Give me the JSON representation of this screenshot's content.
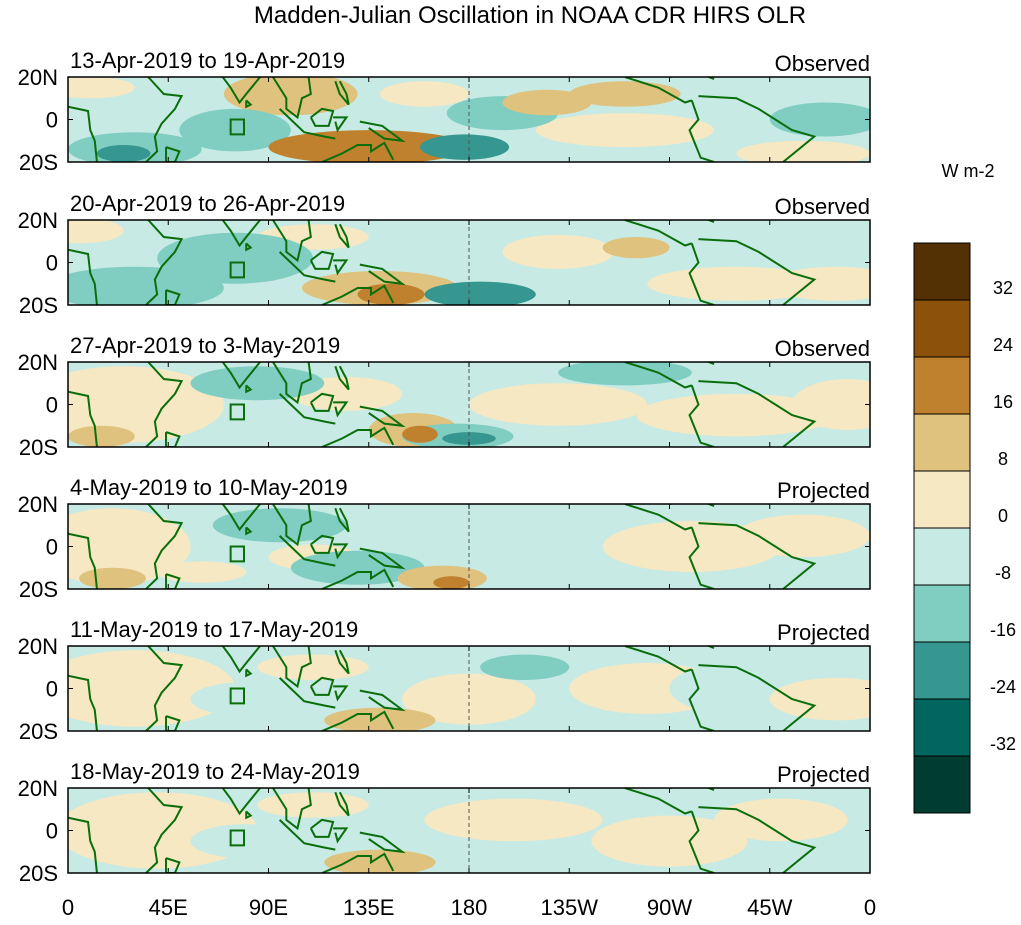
{
  "chart_data": {
    "type": "heatmap",
    "title": "Madden-Julian Oscillation in NOAA CDR HIRS OLR",
    "units_label": "W m-2",
    "x_ticks": [
      {
        "lon": 0,
        "label": "0"
      },
      {
        "lon": 45,
        "label": "45E"
      },
      {
        "lon": 90,
        "label": "90E"
      },
      {
        "lon": 135,
        "label": "135E"
      },
      {
        "lon": 180,
        "label": "180"
      },
      {
        "lon": 225,
        "label": "135W"
      },
      {
        "lon": 270,
        "label": "90W"
      },
      {
        "lon": 315,
        "label": "45W"
      },
      {
        "lon": 360,
        "label": "0"
      }
    ],
    "y_ticks": [
      {
        "lat": 20,
        "label": "20N"
      },
      {
        "lat": 0,
        "label": "0"
      },
      {
        "lat": -20,
        "label": "20S"
      }
    ],
    "xlim": [
      0,
      360
    ],
    "ylim": [
      -20,
      20
    ],
    "dateline_lon": 180,
    "colorbar": {
      "levels": [
        32,
        24,
        16,
        8,
        0,
        -8,
        -16,
        -24,
        -32
      ],
      "labels": [
        "32",
        "24",
        "16",
        "8",
        "0",
        "-8",
        "-16",
        "-24",
        "-32"
      ],
      "colors": [
        "#543005",
        "#8c510a",
        "#bf812d",
        "#dfc27d",
        "#f6e8c3",
        "#c7eae5",
        "#80cdc1",
        "#35978f",
        "#01665e",
        "#003c30"
      ]
    },
    "panels": [
      {
        "period": "13-Apr-2019 to 19-Apr-2019",
        "status": "Observed",
        "features": [
          [
            100,
            12,
            30,
            10,
            12
          ],
          [
            135,
            -13,
            45,
            8,
            18
          ],
          [
            130,
            -14,
            20,
            5,
            22
          ],
          [
            30,
            -14,
            30,
            8,
            -16
          ],
          [
            25,
            -16,
            12,
            4,
            -22
          ],
          [
            75,
            -5,
            25,
            10,
            -12
          ],
          [
            178,
            -13,
            20,
            6,
            -18
          ],
          [
            195,
            3,
            25,
            8,
            -10
          ],
          [
            160,
            12,
            20,
            6,
            4
          ],
          [
            215,
            8,
            20,
            6,
            10
          ],
          [
            250,
            12,
            25,
            6,
            10
          ],
          [
            250,
            -5,
            40,
            8,
            4
          ],
          [
            340,
            0,
            25,
            8,
            -10
          ],
          [
            330,
            -16,
            30,
            6,
            6
          ],
          [
            10,
            15,
            20,
            5,
            4
          ]
        ]
      },
      {
        "period": "20-Apr-2019 to 26-Apr-2019",
        "status": "Observed",
        "features": [
          [
            30,
            -12,
            40,
            10,
            -12
          ],
          [
            75,
            2,
            35,
            12,
            -12
          ],
          [
            140,
            -12,
            35,
            8,
            12
          ],
          [
            145,
            -15,
            15,
            5,
            18
          ],
          [
            185,
            -15,
            25,
            6,
            -18
          ],
          [
            190,
            -16,
            10,
            3,
            -24
          ],
          [
            110,
            12,
            25,
            6,
            6
          ],
          [
            220,
            5,
            25,
            8,
            6
          ],
          [
            255,
            7,
            15,
            5,
            12
          ],
          [
            300,
            -10,
            40,
            8,
            4
          ],
          [
            345,
            -10,
            30,
            8,
            4
          ],
          [
            5,
            15,
            20,
            6,
            4
          ]
        ]
      },
      {
        "period": "27-Apr-2019 to 3-May-2019",
        "status": "Observed",
        "features": [
          [
            25,
            0,
            45,
            18,
            4
          ],
          [
            15,
            -15,
            15,
            5,
            10
          ],
          [
            85,
            10,
            30,
            8,
            -10
          ],
          [
            175,
            -15,
            25,
            6,
            -14
          ],
          [
            180,
            -16,
            12,
            3,
            -20
          ],
          [
            155,
            -12,
            20,
            8,
            12
          ],
          [
            158,
            -14,
            8,
            4,
            18
          ],
          [
            220,
            0,
            40,
            10,
            6
          ],
          [
            250,
            15,
            30,
            6,
            -10
          ],
          [
            300,
            -5,
            45,
            10,
            4
          ],
          [
            350,
            0,
            25,
            12,
            4
          ],
          [
            125,
            5,
            25,
            8,
            4
          ]
        ]
      },
      {
        "period": "4-May-2019 to 10-May-2019",
        "status": "Projected",
        "features": [
          [
            20,
            0,
            35,
            18,
            4
          ],
          [
            20,
            -15,
            15,
            5,
            10
          ],
          [
            95,
            10,
            30,
            8,
            -10
          ],
          [
            130,
            -10,
            30,
            8,
            -10
          ],
          [
            168,
            -15,
            20,
            6,
            12
          ],
          [
            172,
            -17,
            8,
            3,
            18
          ],
          [
            110,
            -5,
            20,
            6,
            4
          ],
          [
            205,
            0,
            30,
            12,
            -6
          ],
          [
            280,
            0,
            40,
            12,
            4
          ],
          [
            330,
            5,
            30,
            10,
            4
          ],
          [
            60,
            -12,
            20,
            5,
            4
          ]
        ]
      },
      {
        "period": "11-May-2019 to 17-May-2019",
        "status": "Projected",
        "features": [
          [
            30,
            0,
            45,
            18,
            4
          ],
          [
            140,
            -15,
            25,
            6,
            8
          ],
          [
            150,
            -17,
            10,
            3,
            12
          ],
          [
            205,
            10,
            20,
            6,
            -10
          ],
          [
            260,
            0,
            35,
            12,
            4
          ],
          [
            300,
            0,
            30,
            12,
            -4
          ],
          [
            80,
            -5,
            25,
            8,
            -6
          ],
          [
            110,
            10,
            25,
            6,
            4
          ],
          [
            345,
            -5,
            30,
            10,
            4
          ],
          [
            180,
            -5,
            30,
            12,
            4
          ]
        ]
      },
      {
        "period": "18-May-2019 to 24-May-2019",
        "status": "Projected",
        "features": [
          [
            40,
            0,
            45,
            18,
            4
          ],
          [
            140,
            -15,
            25,
            6,
            8
          ],
          [
            145,
            -17,
            10,
            3,
            12
          ],
          [
            80,
            -5,
            25,
            8,
            -6
          ],
          [
            200,
            5,
            40,
            10,
            4
          ],
          [
            270,
            -5,
            35,
            12,
            4
          ],
          [
            320,
            5,
            30,
            10,
            4
          ],
          [
            110,
            12,
            25,
            6,
            4
          ]
        ]
      }
    ]
  }
}
